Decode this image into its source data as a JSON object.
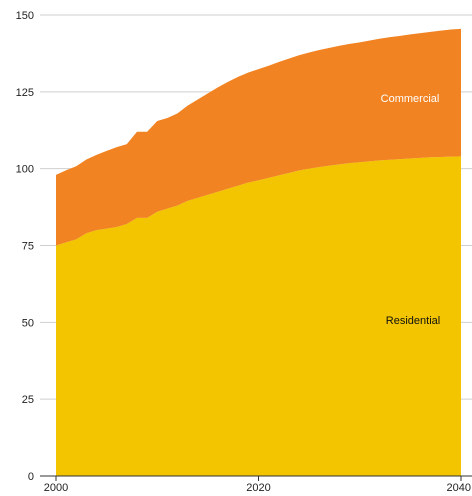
{
  "chart_data": {
    "type": "area",
    "stacked": true,
    "x": [
      2000,
      2001,
      2002,
      2003,
      2004,
      2005,
      2006,
      2007,
      2008,
      2009,
      2010,
      2011,
      2012,
      2013,
      2014,
      2015,
      2016,
      2017,
      2018,
      2019,
      2020,
      2021,
      2022,
      2023,
      2024,
      2025,
      2026,
      2027,
      2028,
      2029,
      2030,
      2031,
      2032,
      2033,
      2034,
      2035,
      2036,
      2037,
      2038,
      2039,
      2040
    ],
    "series": [
      {
        "name": "Residential",
        "color": "#f2c500",
        "label_color": "#111111",
        "values": [
          75,
          76,
          77,
          79,
          80,
          80.5,
          81,
          82,
          84,
          84,
          86,
          87,
          88,
          89.5,
          90.5,
          91.5,
          92.5,
          93.5,
          94.5,
          95.5,
          96.2,
          97,
          97.8,
          98.6,
          99.4,
          100,
          100.5,
          101,
          101.4,
          101.8,
          102.1,
          102.4,
          102.7,
          102.9,
          103.1,
          103.3,
          103.5,
          103.7,
          103.8,
          103.9,
          104
        ]
      },
      {
        "name": "Commercial",
        "color": "#f28322",
        "label_color": "#ffffff",
        "values": [
          23,
          23.5,
          23.8,
          24,
          24.5,
          25.3,
          26,
          26,
          28,
          28,
          29.5,
          29.5,
          30,
          31,
          32,
          33,
          34,
          34.8,
          35.4,
          35.8,
          36.2,
          36.5,
          36.9,
          37.2,
          37.5,
          37.8,
          38.1,
          38.3,
          38.6,
          38.8,
          39,
          39.3,
          39.6,
          39.9,
          40.1,
          40.4,
          40.6,
          40.8,
          41.1,
          41.4,
          41.5
        ]
      }
    ],
    "x_ticks": [
      "2000",
      "2020",
      "2040"
    ],
    "y_ticks": [
      "0",
      "25",
      "50",
      "75",
      "100",
      "125",
      "150"
    ],
    "xlim": [
      2000,
      2040
    ],
    "ylim": [
      0,
      150
    ],
    "grid": "horizontal",
    "labels": {
      "residential": "Residential",
      "commercial": "Commercial"
    }
  }
}
